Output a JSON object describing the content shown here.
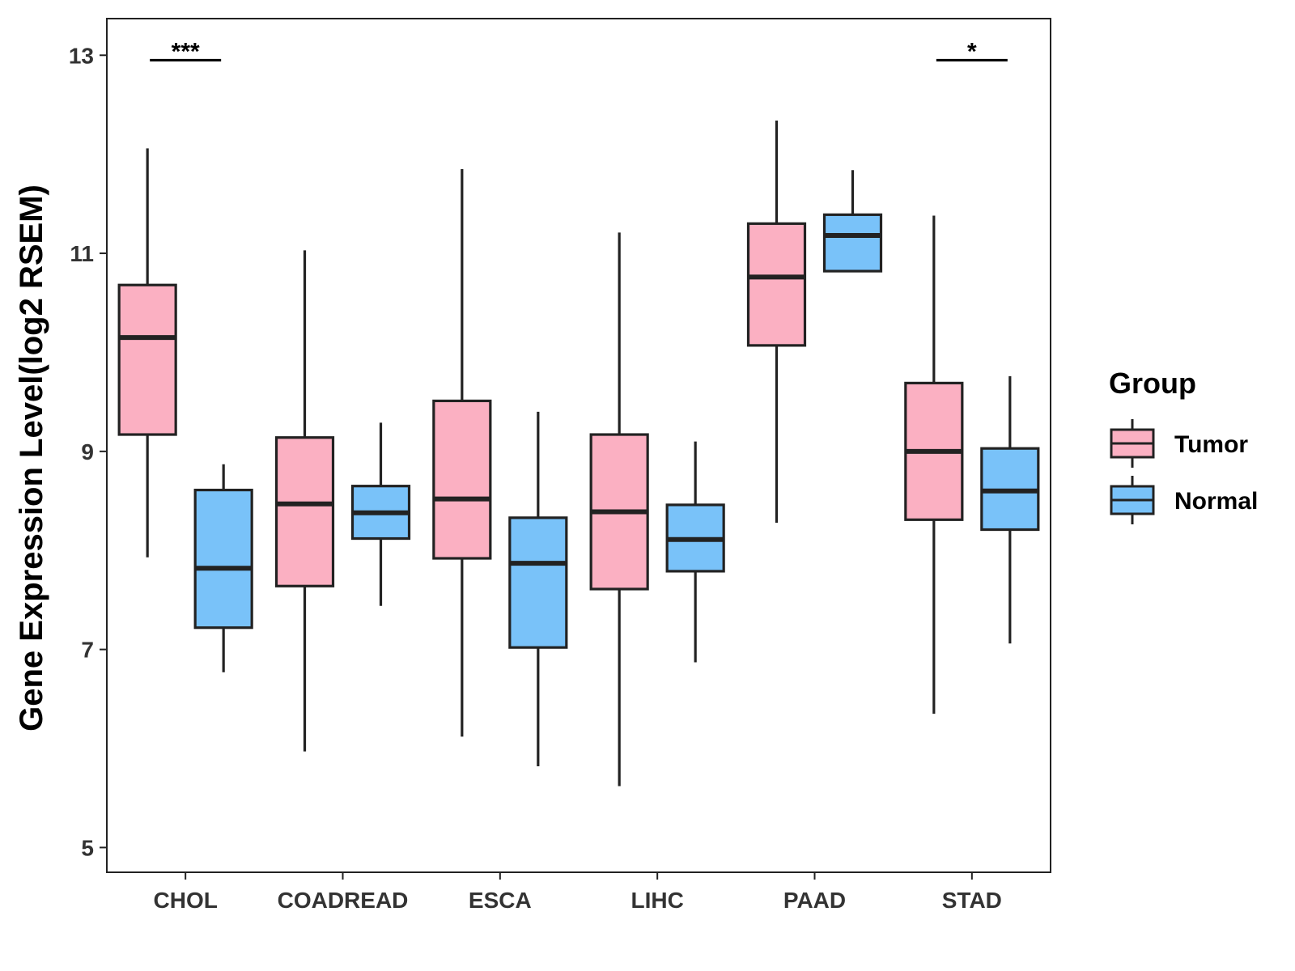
{
  "chart_data": {
    "type": "boxplot",
    "title": "",
    "xlabel": "",
    "ylabel": "Gene Expression Level(log2 RSEM)",
    "ylim": [
      4.75,
      13.37
    ],
    "yticks": [
      5,
      7,
      9,
      11,
      13
    ],
    "categories": [
      "CHOL",
      "COADREAD",
      "ESCA",
      "LIHC",
      "PAAD",
      "STAD"
    ],
    "legend": {
      "title": "Group",
      "position": "right",
      "entries": [
        {
          "name": "Tumor",
          "color": "#FBB0C2"
        },
        {
          "name": "Normal",
          "color": "#79C2F9"
        }
      ]
    },
    "series": [
      {
        "name": "Tumor",
        "color": "#FBB0C2",
        "boxes": [
          {
            "min": 7.93,
            "q1": 9.17,
            "median": 10.15,
            "q3": 10.68,
            "max": 12.06
          },
          {
            "min": 5.97,
            "q1": 7.64,
            "median": 8.47,
            "q3": 9.14,
            "max": 11.03
          },
          {
            "min": 6.12,
            "q1": 7.92,
            "median": 8.52,
            "q3": 9.51,
            "max": 11.85
          },
          {
            "min": 5.62,
            "q1": 7.61,
            "median": 8.39,
            "q3": 9.17,
            "max": 11.21
          },
          {
            "min": 8.28,
            "q1": 10.07,
            "median": 10.76,
            "q3": 11.3,
            "max": 12.34
          },
          {
            "min": 6.35,
            "q1": 8.31,
            "median": 9.0,
            "q3": 9.69,
            "max": 11.38
          }
        ]
      },
      {
        "name": "Normal",
        "color": "#79C2F9",
        "boxes": [
          {
            "min": 6.77,
            "q1": 7.22,
            "median": 7.82,
            "q3": 8.61,
            "max": 8.87
          },
          {
            "min": 7.44,
            "q1": 8.12,
            "median": 8.38,
            "q3": 8.65,
            "max": 9.29
          },
          {
            "min": 5.82,
            "q1": 7.02,
            "median": 7.87,
            "q3": 8.33,
            "max": 9.4
          },
          {
            "min": 6.87,
            "q1": 7.79,
            "median": 8.11,
            "q3": 8.46,
            "max": 9.1
          },
          {
            "min": 10.82,
            "q1": 10.82,
            "median": 11.18,
            "q3": 11.39,
            "max": 11.84
          },
          {
            "min": 7.06,
            "q1": 8.21,
            "median": 8.6,
            "q3": 9.03,
            "max": 9.76
          }
        ]
      }
    ],
    "annotations": [
      {
        "category": "CHOL",
        "text": "***",
        "y": 12.95
      },
      {
        "category": "STAD",
        "text": "*",
        "y": 12.95
      }
    ]
  }
}
